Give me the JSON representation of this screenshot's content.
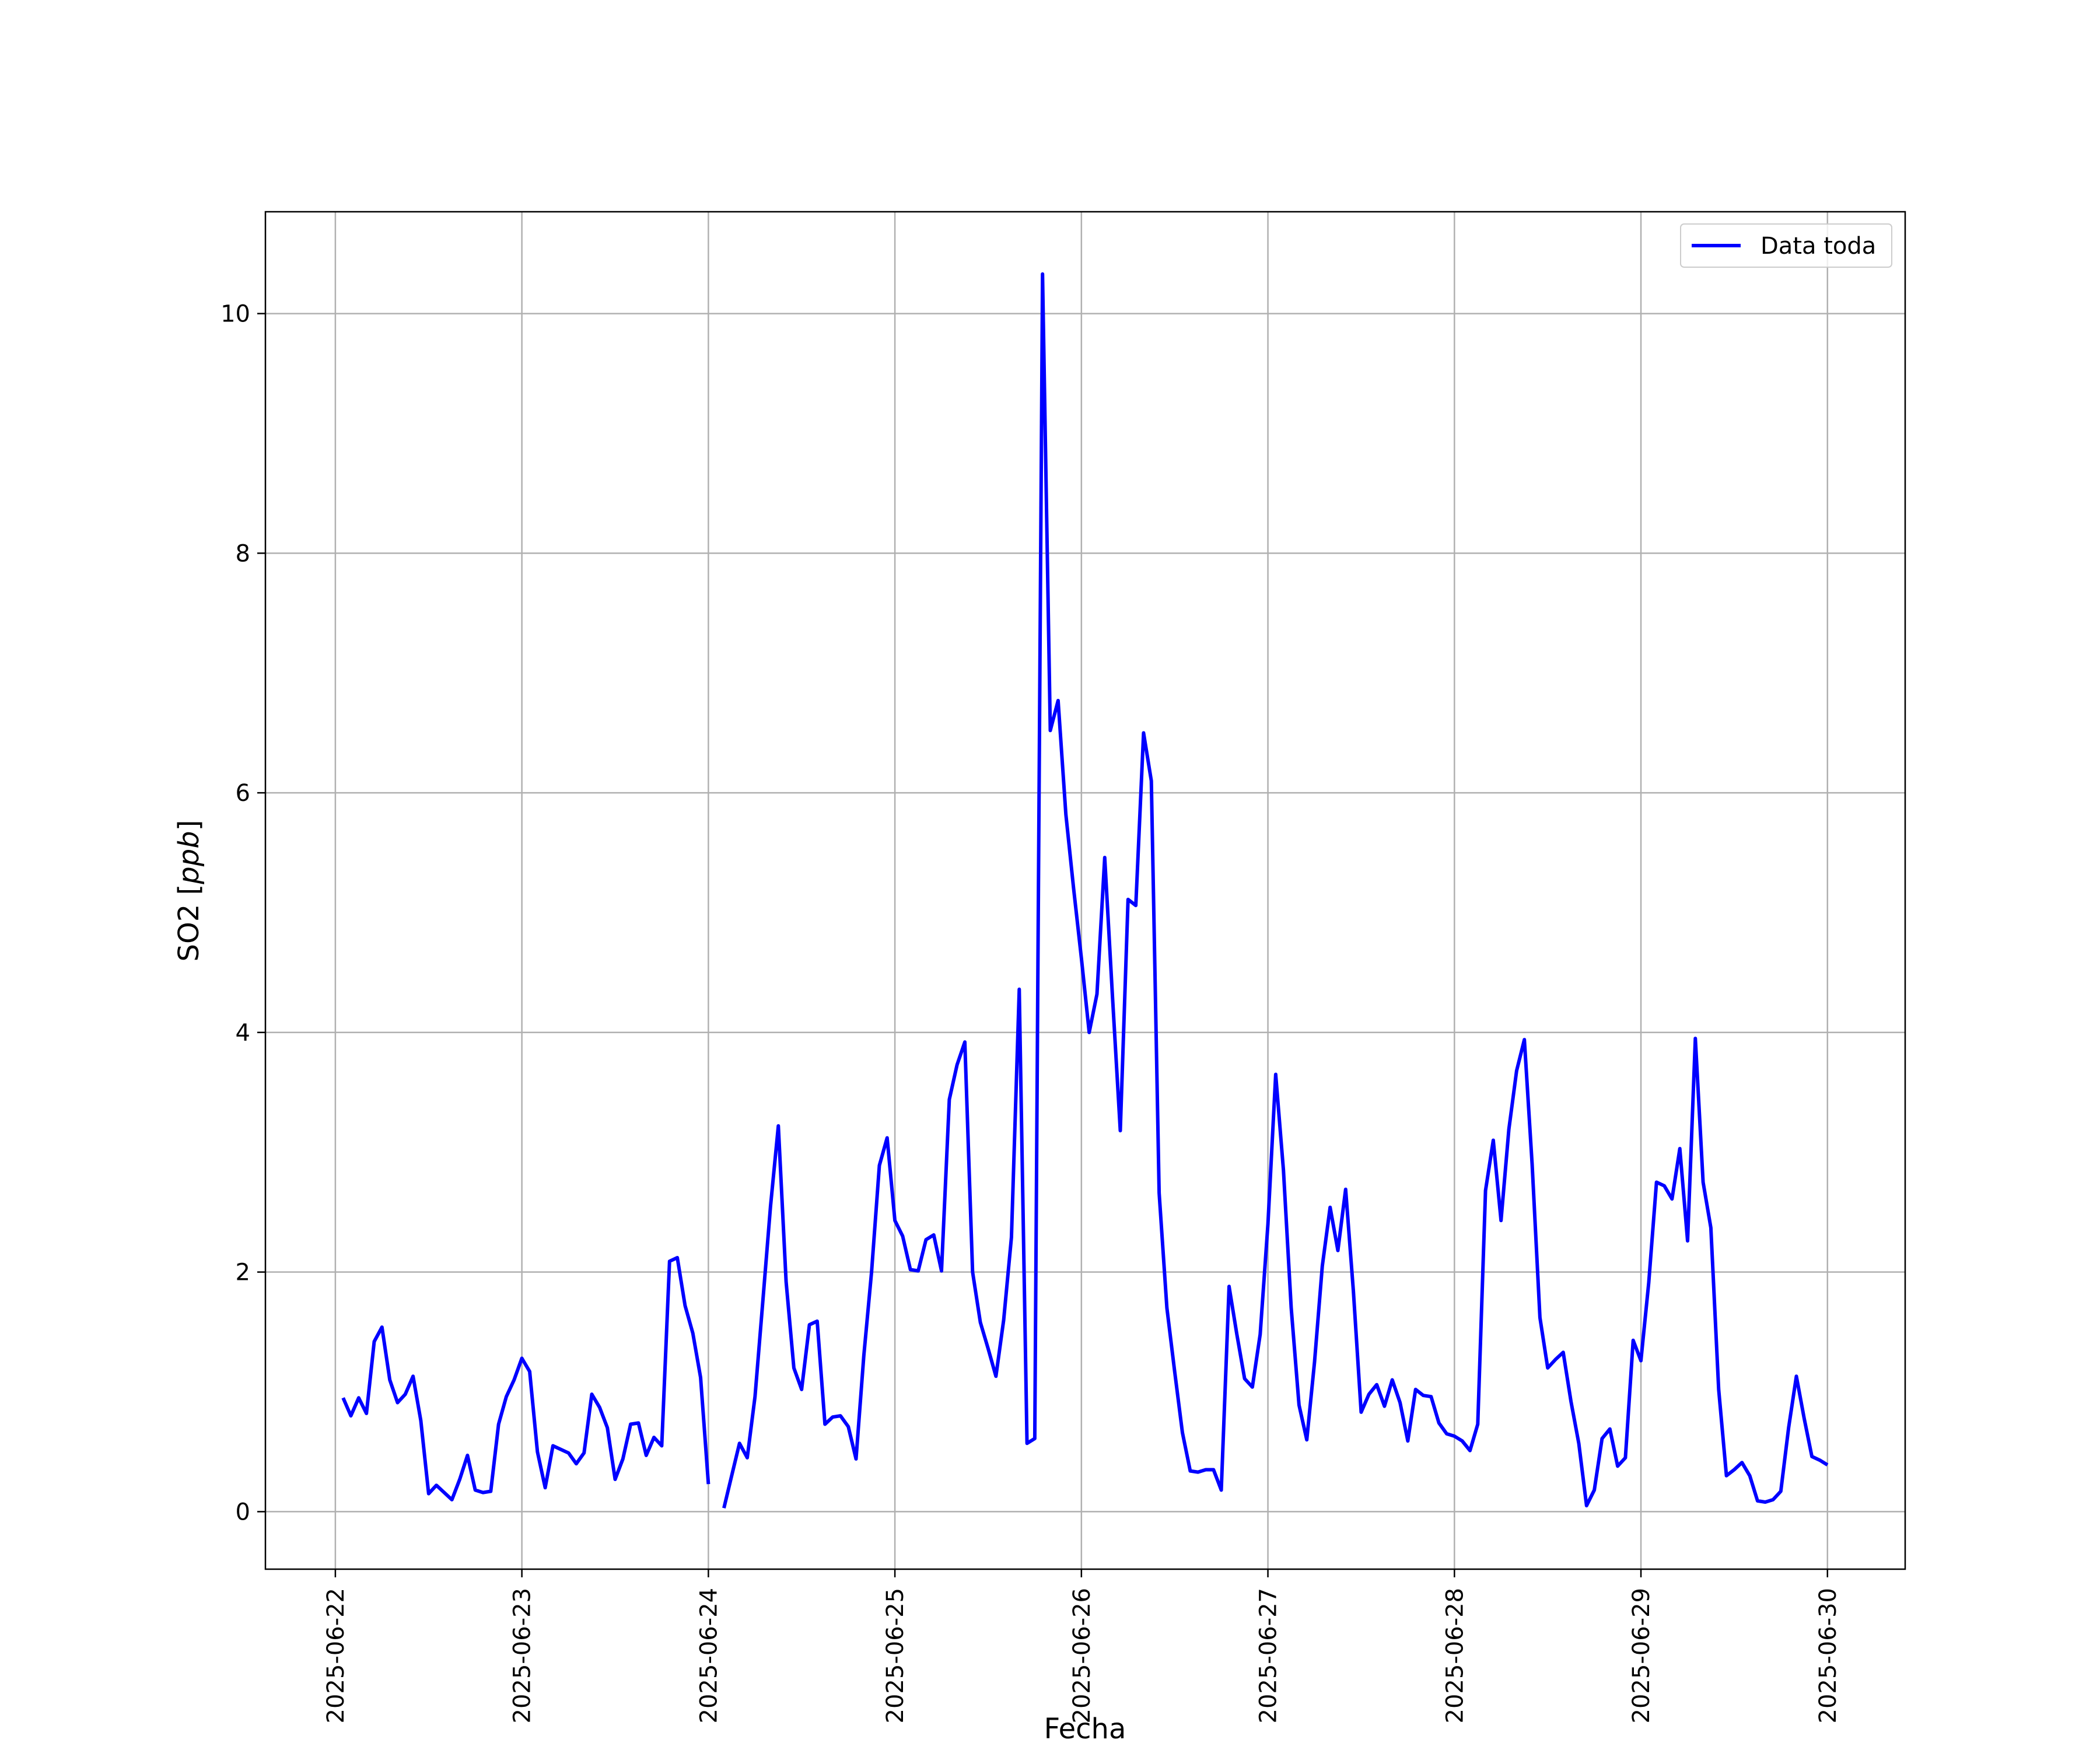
{
  "chart_data": {
    "type": "line",
    "title": "",
    "xlabel": "Fecha",
    "ylabel_text": "SO2 [",
    "ylabel_unit": "ppb",
    "ylabel_close": "]",
    "ylim": [
      -0.48,
      10.85
    ],
    "xlim": [
      "2025-06-21T15:00",
      "2025-06-30T10:00"
    ],
    "grid": true,
    "legend_position": "top-right",
    "x_ticks": [
      "2025-06-22",
      "2025-06-23",
      "2025-06-24",
      "2025-06-25",
      "2025-06-26",
      "2025-06-27",
      "2025-06-28",
      "2025-06-29",
      "2025-06-30"
    ],
    "y_ticks": [
      0,
      2,
      4,
      6,
      8,
      10
    ],
    "series": [
      {
        "name": "Data toda",
        "color": "#0000ff",
        "points": [
          [
            "2025-06-22T01:00",
            0.95
          ],
          [
            "2025-06-22T02:00",
            0.8
          ],
          [
            "2025-06-22T03:00",
            0.95
          ],
          [
            "2025-06-22T04:00",
            0.82
          ],
          [
            "2025-06-22T05:00",
            1.42
          ],
          [
            "2025-06-22T06:00",
            1.54
          ],
          [
            "2025-06-22T07:00",
            1.1
          ],
          [
            "2025-06-22T08:00",
            0.91
          ],
          [
            "2025-06-22T09:00",
            0.98
          ],
          [
            "2025-06-22T10:00",
            1.13
          ],
          [
            "2025-06-22T11:00",
            0.76
          ],
          [
            "2025-06-22T12:00",
            0.15
          ],
          [
            "2025-06-22T13:00",
            0.22
          ],
          [
            "2025-06-22T14:00",
            0.16
          ],
          [
            "2025-06-22T15:00",
            0.1
          ],
          [
            "2025-06-22T16:00",
            0.27
          ],
          [
            "2025-06-22T17:00",
            0.47
          ],
          [
            "2025-06-22T18:00",
            0.18
          ],
          [
            "2025-06-22T19:00",
            0.16
          ],
          [
            "2025-06-22T20:00",
            0.17
          ],
          [
            "2025-06-22T21:00",
            0.73
          ],
          [
            "2025-06-22T22:00",
            0.96
          ],
          [
            "2025-06-22T23:00",
            1.1
          ],
          [
            "2025-06-23T00:00",
            1.28
          ],
          [
            "2025-06-23T01:00",
            1.17
          ],
          [
            "2025-06-23T02:00",
            0.5
          ],
          [
            "2025-06-23T03:00",
            0.2
          ],
          [
            "2025-06-23T04:00",
            0.55
          ],
          [
            "2025-06-23T05:00",
            0.52
          ],
          [
            "2025-06-23T06:00",
            0.49
          ],
          [
            "2025-06-23T07:00",
            0.4
          ],
          [
            "2025-06-23T08:00",
            0.49
          ],
          [
            "2025-06-23T09:00",
            0.98
          ],
          [
            "2025-06-23T10:00",
            0.87
          ],
          [
            "2025-06-23T11:00",
            0.7
          ],
          [
            "2025-06-23T12:00",
            0.27
          ],
          [
            "2025-06-23T13:00",
            0.44
          ],
          [
            "2025-06-23T14:00",
            0.73
          ],
          [
            "2025-06-23T15:00",
            0.74
          ],
          [
            "2025-06-23T16:00",
            0.47
          ],
          [
            "2025-06-23T17:00",
            0.62
          ],
          [
            "2025-06-23T18:00",
            0.55
          ],
          [
            "2025-06-23T19:00",
            2.09
          ],
          [
            "2025-06-23T20:00",
            2.12
          ],
          [
            "2025-06-23T21:00",
            1.72
          ],
          [
            "2025-06-23T22:00",
            1.49
          ],
          [
            "2025-06-23T23:00",
            1.12
          ],
          [
            "2025-06-24T00:00",
            0.23
          ],
          [
            "2025-06-24T01:00",
            null
          ],
          [
            "2025-06-24T02:00",
            0.03
          ],
          [
            "2025-06-24T03:00",
            0.3
          ],
          [
            "2025-06-24T04:00",
            0.57
          ],
          [
            "2025-06-24T05:00",
            0.45
          ],
          [
            "2025-06-24T06:00",
            0.96
          ],
          [
            "2025-06-24T07:00",
            1.75
          ],
          [
            "2025-06-24T08:00",
            2.55
          ],
          [
            "2025-06-24T09:00",
            3.22
          ],
          [
            "2025-06-24T10:00",
            1.92
          ],
          [
            "2025-06-24T11:00",
            1.2
          ],
          [
            "2025-06-24T12:00",
            1.02
          ],
          [
            "2025-06-24T13:00",
            1.56
          ],
          [
            "2025-06-24T14:00",
            1.59
          ],
          [
            "2025-06-24T15:00",
            0.73
          ],
          [
            "2025-06-24T16:00",
            0.79
          ],
          [
            "2025-06-24T17:00",
            0.8
          ],
          [
            "2025-06-24T18:00",
            0.71
          ],
          [
            "2025-06-24T19:00",
            0.44
          ],
          [
            "2025-06-24T20:00",
            1.3
          ],
          [
            "2025-06-24T21:00",
            2.0
          ],
          [
            "2025-06-24T22:00",
            2.89
          ],
          [
            "2025-06-24T23:00",
            3.12
          ],
          [
            "2025-06-25T00:00",
            2.43
          ],
          [
            "2025-06-25T01:00",
            2.3
          ],
          [
            "2025-06-25T02:00",
            2.02
          ],
          [
            "2025-06-25T03:00",
            2.01
          ],
          [
            "2025-06-25T04:00",
            2.27
          ],
          [
            "2025-06-25T05:00",
            2.31
          ],
          [
            "2025-06-25T06:00",
            2.01
          ],
          [
            "2025-06-25T07:00",
            3.44
          ],
          [
            "2025-06-25T08:00",
            3.73
          ],
          [
            "2025-06-25T09:00",
            3.92
          ],
          [
            "2025-06-25T10:00",
            2.0
          ],
          [
            "2025-06-25T11:00",
            1.58
          ],
          [
            "2025-06-25T12:00",
            1.36
          ],
          [
            "2025-06-25T13:00",
            1.13
          ],
          [
            "2025-06-25T14:00",
            1.6
          ],
          [
            "2025-06-25T15:00",
            2.29
          ],
          [
            "2025-06-25T16:00",
            4.36
          ],
          [
            "2025-06-25T17:00",
            0.57
          ],
          [
            "2025-06-25T18:00",
            0.61
          ],
          [
            "2025-06-25T19:00",
            10.33
          ],
          [
            "2025-06-25T20:00",
            6.52
          ],
          [
            "2025-06-25T21:00",
            6.77
          ],
          [
            "2025-06-25T22:00",
            5.82
          ],
          [
            "2025-06-25T23:00",
            5.2
          ],
          [
            "2025-06-26T00:00",
            4.62
          ],
          [
            "2025-06-26T01:00",
            4.0
          ],
          [
            "2025-06-26T02:00",
            4.32
          ],
          [
            "2025-06-26T03:00",
            5.46
          ],
          [
            "2025-06-26T04:00",
            4.3
          ],
          [
            "2025-06-26T05:00",
            3.18
          ],
          [
            "2025-06-26T06:00",
            5.11
          ],
          [
            "2025-06-26T07:00",
            5.06
          ],
          [
            "2025-06-26T08:00",
            6.5
          ],
          [
            "2025-06-26T09:00",
            6.1
          ],
          [
            "2025-06-26T10:00",
            2.66
          ],
          [
            "2025-06-26T11:00",
            1.7
          ],
          [
            "2025-06-26T12:00",
            1.17
          ],
          [
            "2025-06-26T13:00",
            0.66
          ],
          [
            "2025-06-26T14:00",
            0.34
          ],
          [
            "2025-06-26T15:00",
            0.33
          ],
          [
            "2025-06-26T16:00",
            0.35
          ],
          [
            "2025-06-26T17:00",
            0.35
          ],
          [
            "2025-06-26T18:00",
            0.18
          ],
          [
            "2025-06-26T19:00",
            1.88
          ],
          [
            "2025-06-26T20:00",
            1.48
          ],
          [
            "2025-06-26T21:00",
            1.11
          ],
          [
            "2025-06-26T22:00",
            1.04
          ],
          [
            "2025-06-26T23:00",
            1.48
          ],
          [
            "2025-06-27T00:00",
            2.4
          ],
          [
            "2025-06-27T01:00",
            3.65
          ],
          [
            "2025-06-27T02:00",
            2.85
          ],
          [
            "2025-06-27T03:00",
            1.7
          ],
          [
            "2025-06-27T04:00",
            0.89
          ],
          [
            "2025-06-27T05:00",
            0.6
          ],
          [
            "2025-06-27T06:00",
            1.25
          ],
          [
            "2025-06-27T07:00",
            2.05
          ],
          [
            "2025-06-27T08:00",
            2.54
          ],
          [
            "2025-06-27T09:00",
            2.18
          ],
          [
            "2025-06-27T10:00",
            2.69
          ],
          [
            "2025-06-27T11:00",
            1.84
          ],
          [
            "2025-06-27T12:00",
            0.83
          ],
          [
            "2025-06-27T13:00",
            0.98
          ],
          [
            "2025-06-27T14:00",
            1.06
          ],
          [
            "2025-06-27T15:00",
            0.88
          ],
          [
            "2025-06-27T16:00",
            1.1
          ],
          [
            "2025-06-27T17:00",
            0.91
          ],
          [
            "2025-06-27T18:00",
            0.59
          ],
          [
            "2025-06-27T19:00",
            1.02
          ],
          [
            "2025-06-27T20:00",
            0.97
          ],
          [
            "2025-06-27T21:00",
            0.96
          ],
          [
            "2025-06-27T22:00",
            0.74
          ],
          [
            "2025-06-27T23:00",
            0.65
          ],
          [
            "2025-06-28T00:00",
            0.63
          ],
          [
            "2025-06-28T01:00",
            0.59
          ],
          [
            "2025-06-28T02:00",
            0.51
          ],
          [
            "2025-06-28T03:00",
            0.73
          ],
          [
            "2025-06-28T04:00",
            2.68
          ],
          [
            "2025-06-28T05:00",
            3.1
          ],
          [
            "2025-06-28T06:00",
            2.43
          ],
          [
            "2025-06-28T07:00",
            3.19
          ],
          [
            "2025-06-28T08:00",
            3.68
          ],
          [
            "2025-06-28T09:00",
            3.94
          ],
          [
            "2025-06-28T10:00",
            2.9
          ],
          [
            "2025-06-28T11:00",
            1.62
          ],
          [
            "2025-06-28T12:00",
            1.2
          ],
          [
            "2025-06-28T13:00",
            1.27
          ],
          [
            "2025-06-28T14:00",
            1.33
          ],
          [
            "2025-06-28T15:00",
            0.92
          ],
          [
            "2025-06-28T16:00",
            0.57
          ],
          [
            "2025-06-28T17:00",
            0.05
          ],
          [
            "2025-06-28T18:00",
            0.18
          ],
          [
            "2025-06-28T19:00",
            0.61
          ],
          [
            "2025-06-28T20:00",
            0.69
          ],
          [
            "2025-06-28T21:00",
            0.38
          ],
          [
            "2025-06-28T22:00",
            0.45
          ],
          [
            "2025-06-28T23:00",
            1.43
          ],
          [
            "2025-06-29T00:00",
            1.26
          ],
          [
            "2025-06-29T01:00",
            1.91
          ],
          [
            "2025-06-29T02:00",
            2.75
          ],
          [
            "2025-06-29T03:00",
            2.72
          ],
          [
            "2025-06-29T04:00",
            2.61
          ],
          [
            "2025-06-29T05:00",
            3.03
          ],
          [
            "2025-06-29T06:00",
            2.26
          ],
          [
            "2025-06-29T07:00",
            3.95
          ],
          [
            "2025-06-29T08:00",
            2.75
          ],
          [
            "2025-06-29T09:00",
            2.37
          ],
          [
            "2025-06-29T10:00",
            1.02
          ],
          [
            "2025-06-29T11:00",
            0.3
          ],
          [
            "2025-06-29T12:00",
            0.35
          ],
          [
            "2025-06-29T13:00",
            0.41
          ],
          [
            "2025-06-29T14:00",
            0.3
          ],
          [
            "2025-06-29T15:00",
            0.09
          ],
          [
            "2025-06-29T16:00",
            0.08
          ],
          [
            "2025-06-29T17:00",
            0.1
          ],
          [
            "2025-06-29T18:00",
            0.17
          ],
          [
            "2025-06-29T19:00",
            0.7
          ],
          [
            "2025-06-29T20:00",
            1.13
          ],
          [
            "2025-06-29T21:00",
            0.78
          ],
          [
            "2025-06-29T22:00",
            0.46
          ],
          [
            "2025-06-29T23:00",
            0.43
          ],
          [
            "2025-06-30T00:00",
            0.39
          ]
        ]
      }
    ]
  }
}
